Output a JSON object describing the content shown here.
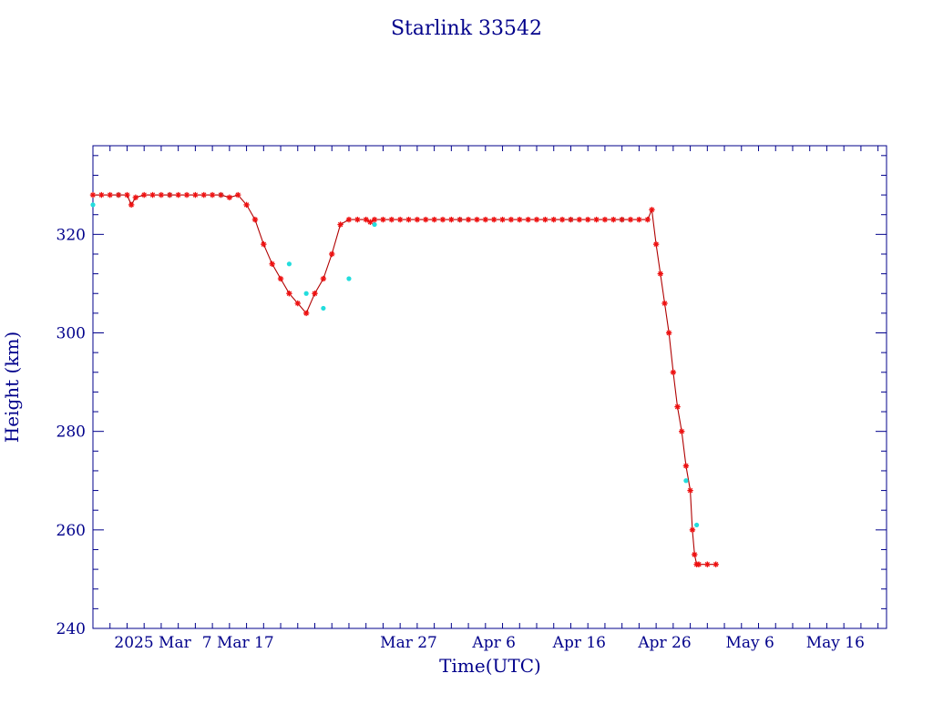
{
  "title": "Starlink 33542",
  "colors": {
    "frame": "#00008b",
    "text": "#00008b",
    "line": "#b00000",
    "marker_primary": "#ee1111",
    "marker_secondary": "#22dddd",
    "background": "#ffffff"
  },
  "chart_data": {
    "type": "line",
    "title": "Starlink 33542",
    "xlabel": "Time(UTC)",
    "ylabel": "Height (km)",
    "ylim": [
      240,
      338
    ],
    "xlim": [
      "2025-02-18",
      "2025-05-22"
    ],
    "y_ticks": [
      240,
      260,
      280,
      300,
      320
    ],
    "x_ticks": [
      {
        "date": "2025-02-25",
        "label": "2025 Mar"
      },
      {
        "date": "2025-03-07",
        "label": "7 Mar 17"
      },
      {
        "date": "2025-03-17",
        "label": ""
      },
      {
        "date": "2025-03-27",
        "label": "Mar 27"
      },
      {
        "date": "2025-04-06",
        "label": "Apr  6"
      },
      {
        "date": "2025-04-16",
        "label": "Apr 16"
      },
      {
        "date": "2025-04-26",
        "label": "Apr 26"
      },
      {
        "date": "2025-05-06",
        "label": "May  6"
      },
      {
        "date": "2025-05-16",
        "label": "May 16"
      }
    ],
    "x_minor_ticks_days": 2,
    "y_minor_ticks": 5,
    "grid": false,
    "legend": "none",
    "series": [
      {
        "marker": "star",
        "x": [
          "2025-02-18",
          "2025-02-19",
          "2025-02-20",
          "2025-02-21",
          "2025-02-22",
          "2025-02-22T12",
          "2025-02-23",
          "2025-02-24",
          "2025-02-25",
          "2025-02-26",
          "2025-02-27",
          "2025-02-28",
          "2025-03-01",
          "2025-03-02",
          "2025-03-03",
          "2025-03-04",
          "2025-03-05",
          "2025-03-06",
          "2025-03-07",
          "2025-03-08",
          "2025-03-09",
          "2025-03-10",
          "2025-03-11",
          "2025-03-12",
          "2025-03-13",
          "2025-03-14",
          "2025-03-15",
          "2025-03-16",
          "2025-03-17",
          "2025-03-18",
          "2025-03-19",
          "2025-03-20",
          "2025-03-21",
          "2025-03-22",
          "2025-03-22T12",
          "2025-03-23",
          "2025-03-24",
          "2025-03-25",
          "2025-03-26",
          "2025-03-27",
          "2025-03-28",
          "2025-03-29",
          "2025-03-30",
          "2025-03-31",
          "2025-04-01",
          "2025-04-02",
          "2025-04-03",
          "2025-04-04",
          "2025-04-05",
          "2025-04-06",
          "2025-04-07",
          "2025-04-08",
          "2025-04-09",
          "2025-04-10",
          "2025-04-11",
          "2025-04-12",
          "2025-04-13",
          "2025-04-14",
          "2025-04-15",
          "2025-04-16",
          "2025-04-17",
          "2025-04-18",
          "2025-04-19",
          "2025-04-20",
          "2025-04-21",
          "2025-04-22",
          "2025-04-23",
          "2025-04-24",
          "2025-04-24T12",
          "2025-04-25",
          "2025-04-25T12",
          "2025-04-26",
          "2025-04-26T12",
          "2025-04-27",
          "2025-04-27T12",
          "2025-04-28",
          "2025-04-28T12",
          "2025-04-29",
          "2025-04-29T06",
          "2025-04-29T12",
          "2025-04-29T18",
          "2025-04-30",
          "2025-05-01",
          "2025-05-02"
        ],
        "y": [
          328,
          328,
          328,
          328,
          328,
          326,
          327.5,
          328,
          328,
          328,
          328,
          328,
          328,
          328,
          328,
          328,
          328,
          327.5,
          328,
          326,
          323,
          318,
          314,
          311,
          308,
          306,
          304,
          308,
          311,
          316,
          322,
          323,
          323,
          323,
          322.5,
          323,
          323,
          323,
          323,
          323,
          323,
          323,
          323,
          323,
          323,
          323,
          323,
          323,
          323,
          323,
          323,
          323,
          323,
          323,
          323,
          323,
          323,
          323,
          323,
          323,
          323,
          323,
          323,
          323,
          323,
          323,
          323,
          323,
          325,
          318,
          312,
          306,
          300,
          292,
          285,
          280,
          273,
          268,
          260,
          255,
          253,
          253,
          253,
          253
        ]
      },
      {
        "marker": "dot",
        "x": [
          "2025-02-18",
          "2025-02-21",
          "2025-02-27",
          "2025-03-05",
          "2025-03-13",
          "2025-03-15",
          "2025-03-17",
          "2025-03-20",
          "2025-03-23",
          "2025-04-02",
          "2025-04-15",
          "2025-04-21",
          "2025-04-28T12",
          "2025-04-29T18"
        ],
        "y": [
          326,
          328,
          328,
          328,
          314,
          308,
          305,
          311,
          322,
          323,
          323,
          323,
          270,
          261
        ]
      }
    ]
  }
}
